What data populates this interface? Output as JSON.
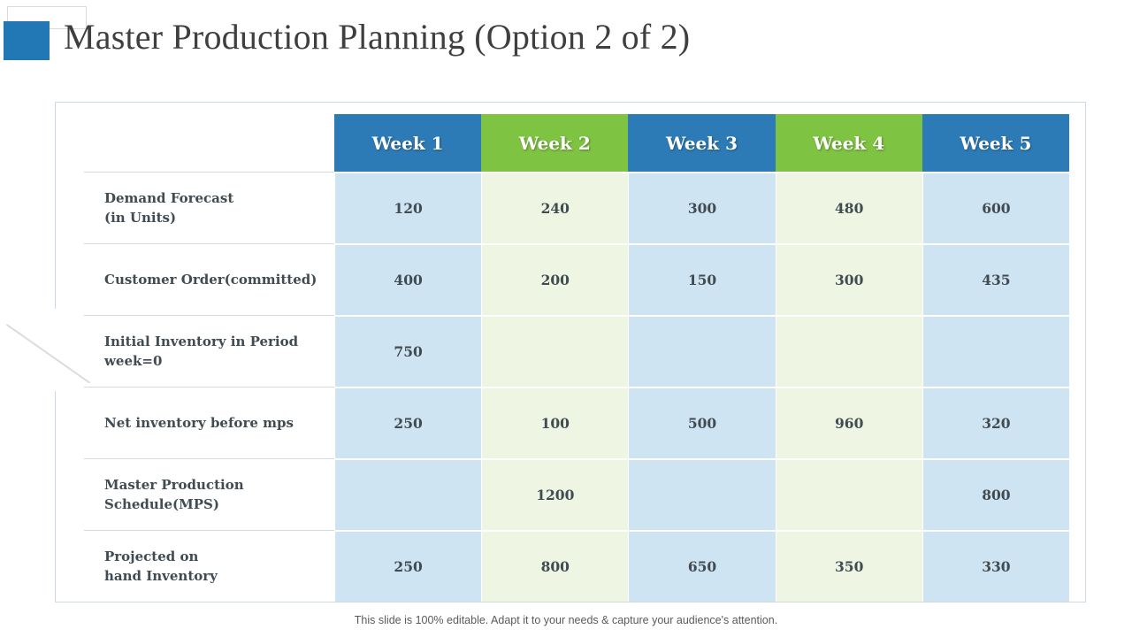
{
  "slide": {
    "title": "Master Production Planning (Option 2 of 2)",
    "footer": "This slide is 100% editable. Adapt it to your needs & capture your audience's attention."
  },
  "table": {
    "headers": [
      {
        "label": "Week 1"
      },
      {
        "label": "Week 2"
      },
      {
        "label": "Week 3"
      },
      {
        "label": "Week 4"
      },
      {
        "label": "Week 5"
      }
    ],
    "rows": [
      {
        "label": "Demand Forecast\n(in Units)",
        "values": [
          "120",
          "240",
          "300",
          "480",
          "600"
        ]
      },
      {
        "label": "Customer Order(committed)",
        "values": [
          "400",
          "200",
          "150",
          "300",
          "435"
        ]
      },
      {
        "label": "Initial Inventory in Period\nweek=0",
        "values": [
          "750",
          "",
          "",
          "",
          ""
        ]
      },
      {
        "label": "Net inventory before mps",
        "values": [
          "250",
          "100",
          "500",
          "960",
          "320"
        ]
      },
      {
        "label": "Master Production\nSchedule(MPS)",
        "values": [
          "",
          "1200",
          "",
          "",
          "800"
        ]
      },
      {
        "label": "Projected on\nhand Inventory",
        "values": [
          "250",
          "800",
          "650",
          "350",
          "330"
        ]
      }
    ]
  },
  "chart_data": {
    "type": "table",
    "title": "Master Production Planning (Option 2 of 2)",
    "columns": [
      "",
      "Week 1",
      "Week 2",
      "Week 3",
      "Week 4",
      "Week 5"
    ],
    "rows": [
      [
        "Demand Forecast (in Units)",
        120,
        240,
        300,
        480,
        600
      ],
      [
        "Customer Order(committed)",
        400,
        200,
        150,
        300,
        435
      ],
      [
        "Initial Inventory in Period week=0",
        750,
        null,
        null,
        null,
        null
      ],
      [
        "Net inventory before mps",
        250,
        100,
        500,
        960,
        320
      ],
      [
        "Master Production Schedule(MPS)",
        null,
        1200,
        null,
        null,
        800
      ],
      [
        "Projected on hand Inventory",
        250,
        800,
        650,
        350,
        330
      ]
    ]
  },
  "colors": {
    "accent_blue": "#2178b5",
    "header_blue": "#2d7bb6",
    "header_green": "#7fc342",
    "cell_blue": "#cfe4f3",
    "cell_green": "#eef5e2",
    "card_border": "#ccd9e2",
    "separator": "#d9d9d9",
    "text_dark": "#404b52",
    "title_color": "#3f3f3f",
    "footer_color": "#5a5a5a"
  }
}
